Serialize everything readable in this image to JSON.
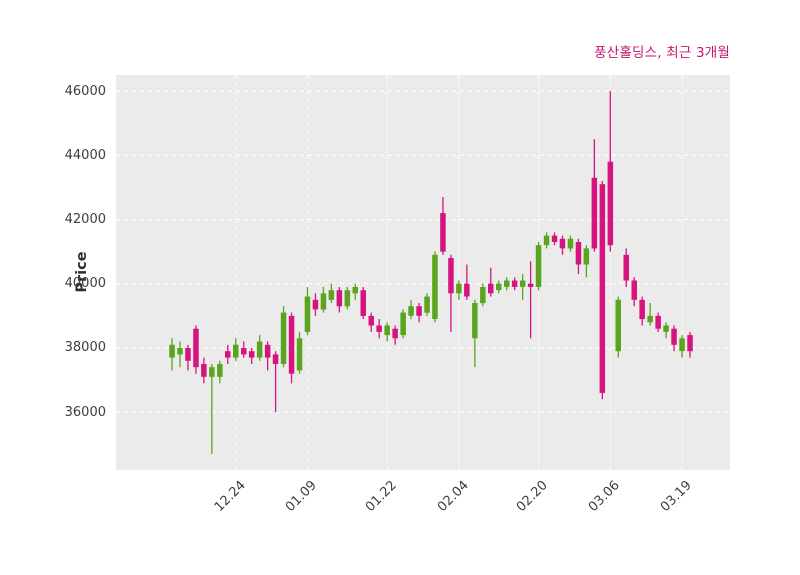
{
  "header": {
    "title": "풍산홀딩스, 최근 3개월"
  },
  "chart_data": {
    "type": "candlestick",
    "title": "풍산홀딩스, 최근 3개월",
    "xlabel": "",
    "ylabel": "Price",
    "ylim": [
      34200,
      46500
    ],
    "yticks": [
      36000,
      38000,
      40000,
      42000,
      44000,
      46000
    ],
    "xticks": [
      {
        "label": "12.24",
        "index": 8
      },
      {
        "label": "01.09",
        "index": 17
      },
      {
        "label": "01.22",
        "index": 27
      },
      {
        "label": "02.04",
        "index": 36
      },
      {
        "label": "02.20",
        "index": 46
      },
      {
        "label": "03.06",
        "index": 55
      },
      {
        "label": "03.19",
        "index": 64
      }
    ],
    "grid": true,
    "grid_style": "white-dashed",
    "legend_position": "none",
    "colors": {
      "up": "#5aa41e",
      "down": "#d6147f",
      "title": "#c4156f",
      "plot_bg": "#ebebeb",
      "grid": "#ffffff",
      "tick_label": "#3d3d3d"
    },
    "candle_format": [
      "open",
      "high",
      "low",
      "close"
    ],
    "candles": [
      [
        37700,
        38300,
        37300,
        38100
      ],
      [
        37800,
        38200,
        37400,
        38000
      ],
      [
        38000,
        38100,
        37300,
        37600
      ],
      [
        38600,
        38700,
        37200,
        37400
      ],
      [
        37500,
        37700,
        36900,
        37100
      ],
      [
        37100,
        37500,
        34700,
        37400
      ],
      [
        37100,
        37600,
        36900,
        37500
      ],
      [
        37900,
        38100,
        37500,
        37700
      ],
      [
        37700,
        38300,
        37600,
        38100
      ],
      [
        38000,
        38200,
        37700,
        37800
      ],
      [
        37900,
        38000,
        37500,
        37700
      ],
      [
        37700,
        38400,
        37600,
        38200
      ],
      [
        38100,
        38200,
        37300,
        37700
      ],
      [
        37800,
        37900,
        36000,
        37500
      ],
      [
        37500,
        39300,
        37400,
        39100
      ],
      [
        39000,
        39100,
        36900,
        37200
      ],
      [
        37300,
        38500,
        37200,
        38300
      ],
      [
        38500,
        39900,
        38400,
        39600
      ],
      [
        39500,
        39700,
        39000,
        39200
      ],
      [
        39200,
        39900,
        39100,
        39700
      ],
      [
        39500,
        40000,
        39400,
        39800
      ],
      [
        39800,
        39900,
        39100,
        39300
      ],
      [
        39300,
        39900,
        39200,
        39800
      ],
      [
        39700,
        40000,
        39500,
        39900
      ],
      [
        39800,
        39900,
        38900,
        39000
      ],
      [
        39000,
        39100,
        38500,
        38700
      ],
      [
        38700,
        38900,
        38300,
        38500
      ],
      [
        38400,
        38800,
        38200,
        38700
      ],
      [
        38600,
        38700,
        38100,
        38300
      ],
      [
        38400,
        39200,
        38300,
        39100
      ],
      [
        39000,
        39500,
        38900,
        39300
      ],
      [
        39300,
        39400,
        38800,
        39000
      ],
      [
        39100,
        39700,
        39000,
        39600
      ],
      [
        38900,
        41000,
        38800,
        40900
      ],
      [
        42200,
        42700,
        40900,
        41000
      ],
      [
        40800,
        40900,
        38500,
        39700
      ],
      [
        39700,
        40100,
        39500,
        40000
      ],
      [
        40000,
        40600,
        39500,
        39600
      ],
      [
        38300,
        39500,
        37400,
        39400
      ],
      [
        39400,
        40000,
        39300,
        39900
      ],
      [
        40000,
        40500,
        39600,
        39700
      ],
      [
        39800,
        40100,
        39700,
        40000
      ],
      [
        39900,
        40200,
        39800,
        40100
      ],
      [
        40100,
        40200,
        39800,
        39900
      ],
      [
        39900,
        40300,
        39500,
        40100
      ],
      [
        40000,
        40700,
        38300,
        39900
      ],
      [
        39900,
        41300,
        39800,
        41200
      ],
      [
        41200,
        41600,
        41100,
        41500
      ],
      [
        41500,
        41600,
        41200,
        41300
      ],
      [
        41400,
        41500,
        40900,
        41100
      ],
      [
        41100,
        41500,
        41000,
        41400
      ],
      [
        41300,
        41400,
        40300,
        40600
      ],
      [
        40600,
        41200,
        40200,
        41100
      ],
      [
        43300,
        44500,
        41000,
        41100
      ],
      [
        43100,
        43200,
        36400,
        36600
      ],
      [
        43800,
        46000,
        41000,
        41200
      ],
      [
        37900,
        39600,
        37700,
        39500
      ],
      [
        40900,
        41100,
        39900,
        40100
      ],
      [
        40100,
        40200,
        39300,
        39500
      ],
      [
        39500,
        39600,
        38700,
        38900
      ],
      [
        38800,
        39400,
        38700,
        39000
      ],
      [
        39000,
        39100,
        38500,
        38600
      ],
      [
        38500,
        38800,
        38300,
        38700
      ],
      [
        38600,
        38700,
        37900,
        38100
      ],
      [
        37900,
        38400,
        37700,
        38300
      ],
      [
        38400,
        38500,
        37700,
        37900
      ]
    ]
  }
}
